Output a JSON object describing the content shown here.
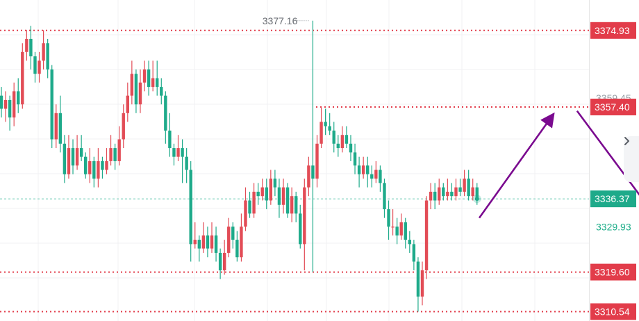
{
  "chart_data": {
    "type": "candlestick",
    "title": "",
    "xlabel": "",
    "ylabel": "",
    "ylim": [
      3308.4,
      3381.9
    ],
    "grid": true,
    "colors": {
      "up": "#e24c56",
      "down": "#1eaa8a",
      "level_line": "#e23c4a",
      "current": "#1eaa8a",
      "arrow": "#7a0a8f"
    },
    "price_levels": [
      {
        "value": 3374.93,
        "label": "3374.93"
      },
      {
        "value": 3357.4,
        "label": "3357.40"
      },
      {
        "value": 3319.6,
        "label": "3319.60"
      },
      {
        "value": 3310.54,
        "label": "3310.54"
      }
    ],
    "current_price": {
      "value": 3336.37,
      "label": "3336.37"
    },
    "axis_ticks": [
      {
        "value": 3359.45,
        "label": "3359.45"
      },
      {
        "value": 3329.93,
        "label": "3329.93"
      }
    ],
    "high_marker": {
      "value": 3377.16,
      "label": "3377.16"
    },
    "projection_arrows": [
      {
        "from": [
          21.5,
          3332.0
        ],
        "to": [
          24.8,
          3355.5
        ]
      },
      {
        "from": [
          25.9,
          3356.5
        ],
        "to": [
          29.7,
          3330.5
        ]
      }
    ],
    "candles": [
      [
        3360,
        3357,
        3362,
        3355
      ],
      [
        3357,
        3359,
        3361,
        3354
      ],
      [
        3359,
        3355,
        3360,
        3352
      ],
      [
        3355,
        3361,
        3363,
        3353
      ],
      [
        3361,
        3358,
        3364,
        3356
      ],
      [
        3358,
        3370,
        3372,
        3357
      ],
      [
        3370,
        3373,
        3375,
        3368
      ],
      [
        3373,
        3369,
        3376,
        3366
      ],
      [
        3369,
        3365,
        3370,
        3363
      ],
      [
        3365,
        3368,
        3370,
        3363
      ],
      [
        3368,
        3372,
        3375,
        3366
      ],
      [
        3372,
        3366,
        3373,
        3364
      ],
      [
        3366,
        3350,
        3367,
        3348
      ],
      [
        3350,
        3356,
        3358,
        3348
      ],
      [
        3356,
        3349,
        3360,
        3347
      ],
      [
        3349,
        3342,
        3351,
        3340
      ],
      [
        3342,
        3348,
        3351,
        3341
      ],
      [
        3348,
        3344,
        3350,
        3342
      ],
      [
        3344,
        3348,
        3351,
        3343
      ],
      [
        3348,
        3346,
        3351,
        3345
      ],
      [
        3346,
        3342,
        3347,
        3341
      ],
      [
        3342,
        3345,
        3348,
        3340
      ],
      [
        3345,
        3341,
        3346,
        3339
      ],
      [
        3341,
        3345,
        3348,
        3339
      ],
      [
        3345,
        3343,
        3346,
        3341
      ],
      [
        3343,
        3345,
        3348,
        3342
      ],
      [
        3345,
        3348,
        3351,
        3344
      ],
      [
        3348,
        3345,
        3349,
        3343
      ],
      [
        3345,
        3350,
        3353,
        3344
      ],
      [
        3350,
        3356,
        3358,
        3348
      ],
      [
        3356,
        3360,
        3363,
        3354
      ],
      [
        3360,
        3365,
        3368,
        3358
      ],
      [
        3365,
        3358,
        3366,
        3356
      ],
      [
        3358,
        3363,
        3366,
        3356
      ],
      [
        3363,
        3366,
        3368,
        3361
      ],
      [
        3366,
        3362,
        3368,
        3360
      ],
      [
        3362,
        3364,
        3368,
        3361
      ],
      [
        3364,
        3362,
        3368,
        3360
      ],
      [
        3362,
        3360,
        3364,
        3358
      ],
      [
        3360,
        3352,
        3361,
        3349
      ],
      [
        3352,
        3348,
        3356,
        3346
      ],
      [
        3348,
        3346,
        3349,
        3344
      ],
      [
        3346,
        3348,
        3351,
        3345
      ],
      [
        3348,
        3346,
        3350,
        3340
      ],
      [
        3346,
        3343,
        3348,
        3340
      ],
      [
        3343,
        3326,
        3345,
        3322
      ],
      [
        3326,
        3327,
        3331,
        3325
      ],
      [
        3327,
        3325,
        3328,
        3322
      ],
      [
        3325,
        3328,
        3331,
        3324
      ],
      [
        3328,
        3325,
        3330,
        3323
      ],
      [
        3325,
        3328,
        3331,
        3324
      ],
      [
        3328,
        3324,
        3330,
        3322
      ],
      [
        3324,
        3320,
        3325,
        3318
      ],
      [
        3320,
        3324,
        3327,
        3319
      ],
      [
        3324,
        3330,
        3332,
        3323
      ],
      [
        3330,
        3327,
        3331,
        3325
      ],
      [
        3327,
        3323,
        3329,
        3322
      ],
      [
        3323,
        3330,
        3333,
        3322
      ],
      [
        3330,
        3336,
        3339,
        3329
      ],
      [
        3336,
        3333,
        3338,
        3332
      ],
      [
        3333,
        3338,
        3340,
        3332
      ],
      [
        3338,
        3337,
        3340,
        3335
      ],
      [
        3337,
        3339,
        3341,
        3336
      ],
      [
        3339,
        3336,
        3341,
        3334
      ],
      [
        3336,
        3341,
        3343,
        3335
      ],
      [
        3341,
        3339,
        3343,
        3337
      ],
      [
        3339,
        3335,
        3341,
        3332
      ],
      [
        3335,
        3339,
        3341,
        3333
      ],
      [
        3339,
        3333,
        3340,
        3332
      ],
      [
        3333,
        3337,
        3339,
        3331
      ],
      [
        3337,
        3333,
        3338,
        3331
      ],
      [
        3333,
        3326,
        3335,
        3325
      ],
      [
        3326,
        3339,
        3341,
        3320
      ],
      [
        3339,
        3344,
        3346,
        3337
      ],
      [
        3344,
        3341,
        3377.16,
        3319.6
      ],
      [
        3341,
        3349,
        3351,
        3339
      ],
      [
        3349,
        3354,
        3357.4,
        3348
      ],
      [
        3354,
        3353,
        3357,
        3351
      ],
      [
        3353,
        3352,
        3356,
        3351
      ],
      [
        3352,
        3349,
        3354,
        3347
      ],
      [
        3349,
        3348,
        3351,
        3346
      ],
      [
        3348,
        3351,
        3353,
        3347
      ],
      [
        3351,
        3349,
        3353,
        3348
      ],
      [
        3349,
        3347,
        3351,
        3345
      ],
      [
        3347,
        3344,
        3349,
        3342
      ],
      [
        3344,
        3342,
        3346,
        3339
      ],
      [
        3342,
        3344,
        3346,
        3341
      ],
      [
        3344,
        3342,
        3346,
        3339
      ],
      [
        3342,
        3341,
        3344,
        3339
      ],
      [
        3341,
        3343,
        3345,
        3340
      ],
      [
        3343,
        3340,
        3344,
        3338
      ],
      [
        3340,
        3334,
        3341,
        3332
      ],
      [
        3334,
        3330,
        3336,
        3327
      ],
      [
        3330,
        3330,
        3334,
        3328
      ],
      [
        3330,
        3328,
        3332,
        3326
      ],
      [
        3328,
        3331,
        3333,
        3327
      ],
      [
        3331,
        3327,
        3332,
        3325
      ],
      [
        3327,
        3326,
        3329,
        3324
      ],
      [
        3326,
        3322,
        3327,
        3320
      ],
      [
        3322,
        3314,
        3323,
        3310.54
      ],
      [
        3314,
        3320,
        3322,
        3312
      ],
      [
        3320,
        3336,
        3337,
        3318
      ],
      [
        3336,
        3338,
        3340,
        3334
      ],
      [
        3338,
        3336,
        3340,
        3334
      ],
      [
        3336,
        3339,
        3341,
        3335
      ],
      [
        3339,
        3337,
        3340,
        3336
      ],
      [
        3337,
        3338,
        3341,
        3336
      ],
      [
        3338,
        3337,
        3340,
        3336
      ],
      [
        3337,
        3339,
        3341,
        3336
      ],
      [
        3339,
        3338,
        3341,
        3337
      ],
      [
        3338,
        3341,
        3343,
        3337
      ],
      [
        3341,
        3337,
        3343,
        3336
      ],
      [
        3337,
        3339,
        3341,
        3336
      ],
      [
        3339,
        3336.37,
        3340,
        3335
      ]
    ]
  }
}
